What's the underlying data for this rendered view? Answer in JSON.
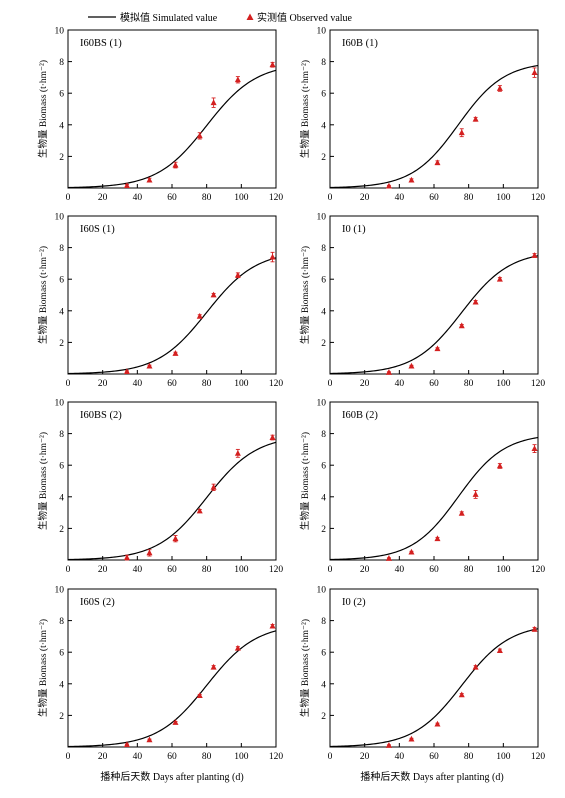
{
  "legend": {
    "simulated_label": "模拟值 Simulated value",
    "observed_label": "实测值 Observed value",
    "position": "top-center",
    "simulated_color": "#000000",
    "observed_color": "#d42020"
  },
  "shared_axes": {
    "xlabel": "播种后天数 Days after planting (d)",
    "ylabel": "生物量 Biomass (t·hm⁻²)",
    "xlim": [
      0,
      120
    ],
    "ylim": [
      0,
      10
    ],
    "xticks": [
      0,
      20,
      40,
      60,
      80,
      100,
      120
    ],
    "yticks": [
      2,
      4,
      6,
      8,
      10
    ]
  },
  "chart_data": [
    {
      "type": "scatter",
      "title": "I60BS (1)",
      "simulated_max": 7.9,
      "series": [
        {
          "name": "模拟值 Simulated value",
          "type": "line",
          "model": "logistic",
          "max": 7.9,
          "midpoint": 80,
          "rate": 0.07
        },
        {
          "name": "实测值 Observed value",
          "type": "scatter",
          "x": [
            34,
            47,
            62,
            76,
            84,
            98,
            118
          ],
          "y": [
            0.15,
            0.5,
            1.45,
            3.3,
            5.4,
            6.85,
            7.8
          ],
          "error": [
            0.08,
            0.12,
            0.18,
            0.2,
            0.3,
            0.2,
            0.15
          ]
        }
      ]
    },
    {
      "type": "scatter",
      "title": "I60B (1)",
      "simulated_max": 8.0,
      "series": [
        {
          "name": "模拟值 Simulated value",
          "type": "line",
          "model": "logistic",
          "max": 8.0,
          "midpoint": 74,
          "rate": 0.075
        },
        {
          "name": "实测值 Observed value",
          "type": "scatter",
          "x": [
            34,
            47,
            62,
            76,
            84,
            98,
            118
          ],
          "y": [
            0.12,
            0.5,
            1.6,
            3.5,
            4.35,
            6.3,
            7.3
          ],
          "error": [
            0.05,
            0.08,
            0.12,
            0.25,
            0.12,
            0.18,
            0.3
          ]
        }
      ]
    },
    {
      "type": "scatter",
      "title": "I60S (1)",
      "simulated_max": 7.8,
      "series": [
        {
          "name": "模拟值 Simulated value",
          "type": "line",
          "model": "logistic",
          "max": 7.8,
          "midpoint": 80,
          "rate": 0.07
        },
        {
          "name": "实测值 Observed value",
          "type": "scatter",
          "x": [
            34,
            47,
            62,
            76,
            84,
            98,
            118
          ],
          "y": [
            0.15,
            0.5,
            1.3,
            3.65,
            5.0,
            6.25,
            7.4
          ],
          "error": [
            0.05,
            0.06,
            0.08,
            0.1,
            0.1,
            0.15,
            0.3
          ]
        }
      ]
    },
    {
      "type": "scatter",
      "title": "I0 (1)",
      "simulated_max": 7.8,
      "series": [
        {
          "name": "模拟值 Simulated value",
          "type": "line",
          "model": "logistic",
          "max": 7.8,
          "midpoint": 76,
          "rate": 0.072
        },
        {
          "name": "实测值 Observed value",
          "type": "scatter",
          "x": [
            34,
            47,
            62,
            76,
            84,
            98,
            118
          ],
          "y": [
            0.1,
            0.5,
            1.6,
            3.05,
            4.55,
            6.0,
            7.5
          ],
          "error": [
            0.04,
            0.05,
            0.06,
            0.08,
            0.1,
            0.1,
            0.12
          ]
        }
      ]
    },
    {
      "type": "scatter",
      "title": "I60BS (2)",
      "simulated_max": 7.9,
      "series": [
        {
          "name": "模拟值 Simulated value",
          "type": "line",
          "model": "logistic",
          "max": 7.9,
          "midpoint": 80,
          "rate": 0.07
        },
        {
          "name": "实测值 Observed value",
          "type": "scatter",
          "x": [
            34,
            47,
            62,
            76,
            84,
            98,
            118
          ],
          "y": [
            0.15,
            0.45,
            1.35,
            3.1,
            4.6,
            6.75,
            7.75
          ],
          "error": [
            0.15,
            0.2,
            0.2,
            0.1,
            0.2,
            0.25,
            0.15
          ]
        }
      ]
    },
    {
      "type": "scatter",
      "title": "I60B (2)",
      "simulated_max": 8.0,
      "series": [
        {
          "name": "模拟值 Simulated value",
          "type": "line",
          "model": "logistic",
          "max": 8.0,
          "midpoint": 74,
          "rate": 0.075
        },
        {
          "name": "实测值 Observed value",
          "type": "scatter",
          "x": [
            34,
            47,
            62,
            76,
            84,
            98,
            118
          ],
          "y": [
            0.1,
            0.5,
            1.35,
            2.95,
            4.15,
            5.95,
            7.05
          ],
          "error": [
            0.04,
            0.05,
            0.08,
            0.1,
            0.25,
            0.15,
            0.25
          ]
        }
      ]
    },
    {
      "type": "scatter",
      "title": "I60S (2)",
      "simulated_max": 7.8,
      "series": [
        {
          "name": "模拟值 Simulated value",
          "type": "line",
          "model": "logistic",
          "max": 7.8,
          "midpoint": 80,
          "rate": 0.07
        },
        {
          "name": "实测值 Observed value",
          "type": "scatter",
          "x": [
            34,
            47,
            62,
            76,
            84,
            98,
            118
          ],
          "y": [
            0.15,
            0.45,
            1.55,
            3.25,
            5.05,
            6.25,
            7.65
          ],
          "error": [
            0.04,
            0.05,
            0.06,
            0.08,
            0.1,
            0.1,
            0.1
          ]
        }
      ]
    },
    {
      "type": "scatter",
      "title": "I0 (2)",
      "simulated_max": 7.8,
      "series": [
        {
          "name": "模拟值 Simulated value",
          "type": "line",
          "model": "logistic",
          "max": 7.8,
          "midpoint": 76,
          "rate": 0.072
        },
        {
          "name": "实测值 Observed value",
          "type": "scatter",
          "x": [
            34,
            47,
            62,
            76,
            84,
            98,
            118
          ],
          "y": [
            0.1,
            0.5,
            1.45,
            3.3,
            5.05,
            6.1,
            7.45
          ],
          "error": [
            0.04,
            0.05,
            0.06,
            0.08,
            0.1,
            0.1,
            0.12
          ]
        }
      ]
    }
  ]
}
